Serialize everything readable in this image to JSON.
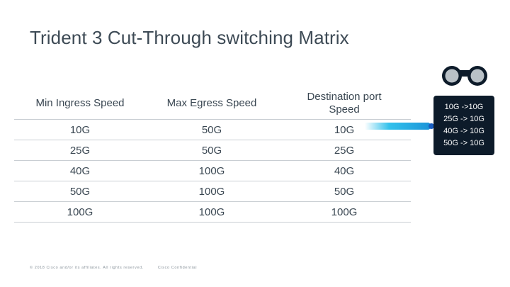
{
  "slide": {
    "title": "Trident 3 Cut-Through switching Matrix"
  },
  "table": {
    "headers": [
      "Min Ingress Speed",
      "Max Egress Speed",
      "Destination port Speed"
    ],
    "rows": [
      [
        "10G",
        "50G",
        "10G"
      ],
      [
        "25G",
        "50G",
        "25G"
      ],
      [
        "40G",
        "100G",
        "40G"
      ],
      [
        "50G",
        "100G",
        "50G"
      ],
      [
        "100G",
        "100G",
        "100G"
      ]
    ]
  },
  "callout": {
    "lines": [
      "10G ->10G",
      "25G -> 10G",
      "40G -> 10G",
      "50G -> 10G"
    ],
    "icon": "binoculars-icon"
  },
  "footer": {
    "copyright": "© 2018 Cisco and/or its affiliates. All rights reserved.",
    "classification": "Cisco Confidential"
  },
  "colors": {
    "accent_blue": "#0fb6e8",
    "callout_bg": "#0d1b2a",
    "text": "#3a4752"
  }
}
